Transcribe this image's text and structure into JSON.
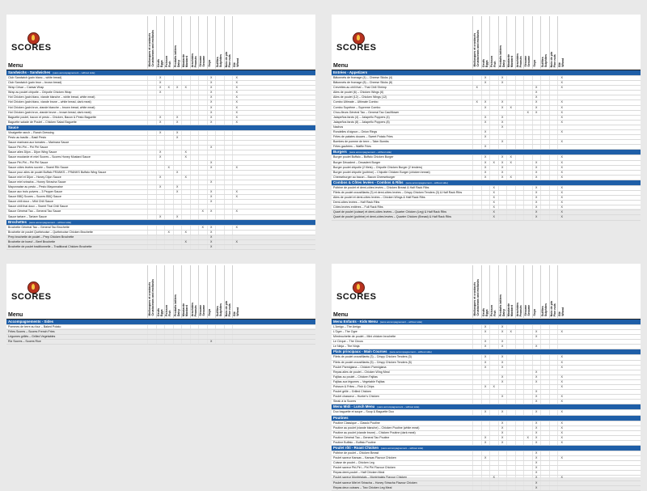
{
  "logo_text": "SCORES",
  "menu_label": "Menu",
  "columns": [
    "Mollusques et crustacés\nCrustaceans and mollusks",
    "Oeufs\nEggs",
    "Poisson\nFish",
    "Produits laitiers\nDairy",
    "Moutarde\nMustard",
    "Arachides\nPeanuts",
    "Sésame\nSesame",
    "Soya",
    "Sulfites\nSulphites",
    "Noix de pin\nPine nuts",
    "Blé\nWheat"
  ],
  "panels": [
    {
      "sections": [
        {
          "title": "Sandwichs - Sandwiches",
          "note": "(sans accompagnement – without side)",
          "rows": [
            {
              "name": "Club Sandwich (pain blanc – white bread)",
              "marks": [
                2,
                8,
                11
              ]
            },
            {
              "name": "Club Sandwich (pain brun – brown bread)",
              "marks": [
                2,
                8,
                11
              ]
            },
            {
              "name": "Wrap César – Caesar Wrap",
              "marks": [
                2,
                3,
                4,
                5,
                8,
                11
              ]
            },
            {
              "name": "Wrap au poulet chipotle – Chipotle Chicken Wrap",
              "marks": [
                2,
                8,
                11
              ]
            },
            {
              "name": "Hot Chicken (pain blanc, viande blanche – white bread, white meat)",
              "marks": [
                8,
                11
              ]
            },
            {
              "name": "Hot Chicken (pain blanc, viande brune – white bread, dark meat)",
              "marks": [
                8,
                11
              ]
            },
            {
              "name": "Hot Chicken (pain brun, viande blanche – brown bread, white meat)",
              "marks": [
                8,
                11
              ]
            },
            {
              "name": "Hot Chicken (pain brun, viande brune – brown bread, dark meat)",
              "marks": [
                8,
                11
              ]
            },
            {
              "name": "Baguette poulet, bacon et pesto – Chicken, Bacon & Pesto Baguette",
              "marks": [
                2,
                4,
                8,
                11
              ]
            },
            {
              "name": "Baguette salade de Poulet – Chicken Salad Baguette",
              "marks": [
                2,
                4,
                8,
                11
              ]
            }
          ]
        },
        {
          "title": "Sauce",
          "note": "",
          "rows": [
            {
              "name": "Vinaigrette ranch – Ranch Dressing",
              "marks": [
                2,
                4
              ]
            },
            {
              "name": "Pesto au basilic – Basil Pesto",
              "marks": [
                4
              ]
            },
            {
              "name": "Sauce marinara aux tomates – Marinara Sauce",
              "marks": []
            },
            {
              "name": "Sauce Piri-Piri – Piri Piri Sauce",
              "marks": [
                8
              ]
            },
            {
              "name": "Sauce ailes Dijon – Dijon Wing Sauce",
              "marks": [
                2,
                5
              ]
            },
            {
              "name": "Sauce moutarde et miel Scores – Scores Honey Mustard Sauce",
              "marks": [
                2,
                5
              ]
            },
            {
              "name": "Sauce Piri-Piri – Piri Piri Sauce",
              "marks": [
                8
              ]
            },
            {
              "name": "Sauce côtes levées sucrée – Sweet Rib Sauce",
              "marks": [
                3,
                8,
                11
              ]
            },
            {
              "name": "Sauce pour ailes de poulet Buffalo FRANKS – FRANKS Buffalo Wing Sauce",
              "marks": [
                4
              ]
            },
            {
              "name": "Sauce miel et Dijon – Honey Dijon Sauce",
              "marks": [
                2,
                5
              ]
            },
            {
              "name": "Sauce miel sriracha – Honey Sriracha Sauce",
              "marks": [
                8
              ]
            },
            {
              "name": "Mayonnaise au pesto – Pesto Mayonnaise",
              "marks": [
                2,
                4
              ]
            },
            {
              "name": "Sauce aux trois poivres – 3 Pepper Sauce",
              "marks": [
                4,
                8,
                11
              ]
            },
            {
              "name": "Sauce BBQ Scores – Scores BBQ Sauce",
              "marks": [
                8,
                11
              ]
            },
            {
              "name": "Sauce chili doux – Mild Chili Sauce",
              "marks": [
                8
              ]
            },
            {
              "name": "Sauce chili thai doux – Sweet Thai Chili Sauce",
              "marks": []
            },
            {
              "name": "Sauce Général Tao – General Tao Sauce",
              "marks": [
                7,
                8,
                11
              ]
            },
            {
              "name": "Sauce tartare – Tartare Sauce",
              "marks": [
                2,
                4
              ]
            }
          ]
        },
        {
          "title": "Brochettes",
          "note": "(sans accompagnement – without side)",
          "rows": [
            {
              "name": "Brochette Général Tao – General Tao Brochette",
              "marks": [
                7,
                8,
                11
              ]
            },
            {
              "name": "Brochette de poulet Québécoise – Québécoise Chicken Brochette",
              "marks": [
                3,
                5,
                8
              ]
            },
            {
              "name": "Prep brochette de poulet – Prep Chicken Brochette",
              "marks": [
                8
              ]
            },
            {
              "name": "Brochette de boeuf – Beef Brochette",
              "marks": [
                5,
                8,
                11
              ]
            },
            {
              "name": "Brochette de poulet traditionnelle – Traditional Chicken Brochette",
              "marks": [
                8
              ]
            }
          ]
        }
      ]
    },
    {
      "sections": [
        {
          "title": "Entrées - Appetizers",
          "note": "",
          "rows": [
            {
              "name": "Bâtonnets de fromage (4) – Cheese Sticks (4)",
              "marks": [
                2,
                4,
                11
              ]
            },
            {
              "name": "Bâtonnets de fromage (8) – Cheese Sticks (8)",
              "marks": [
                2,
                4,
                11
              ]
            },
            {
              "name": "Crevettes au chili thaï – Thai Chili Shrimp",
              "marks": [
                1,
                8,
                11
              ]
            },
            {
              "name": "Ailes de poulet (6) – Chicken Wings (6)",
              "marks": [
                8
              ]
            },
            {
              "name": "Ailes de poulet (12) – Chicken Wings (12)",
              "marks": [
                8
              ]
            },
            {
              "name": "Combo Ultimate – Ultimate Combo",
              "marks": [
                1,
                2,
                4,
                8,
                11
              ]
            },
            {
              "name": "Combo Suprême – Supreme Combo",
              "marks": [
                2,
                4,
                5,
                8,
                11
              ]
            },
            {
              "name": "Chou-fleurs Général Tao – General Tao Cauliflower",
              "marks": [
                7,
                8,
                11
              ]
            },
            {
              "name": "Jalapeños farcis (4) – Jalapeño Poppers (4)",
              "marks": [
                2,
                4,
                11
              ]
            },
            {
              "name": "Jalapeños farcis (8) – Jalapeño Poppers (8)",
              "marks": [
                2,
                4,
                11
              ]
            },
            {
              "name": "Nachos",
              "marks": [
                4
              ]
            },
            {
              "name": "Rondelles d'oignon – Onion Rings",
              "marks": [
                2,
                11
              ]
            },
            {
              "name": "Frites de patates douces – Sweet Potato Fries",
              "marks": [
                2
              ]
            },
            {
              "name": "Bombes de pomme de terre – Tater Bombs",
              "marks": [
                4,
                11
              ]
            },
            {
              "name": "Frites gaufrées – Waffle Fries",
              "marks": [
                2
              ]
            }
          ]
        },
        {
          "title": "Burgers",
          "note": "(sans accompagnement – without side)",
          "rows": [
            {
              "name": "Burger poulet Buffalo – Buffalo Chicken Burger",
              "marks": [
                2,
                4,
                5,
                11
              ]
            },
            {
              "name": "Burger Décadent – Decadent Burger",
              "marks": [
                2,
                3,
                4,
                5,
                8,
                11
              ]
            },
            {
              "name": "Burger poulet chipotle (2 filets) – Chipotle Chicken Burger (2 tenders)",
              "marks": [
                2,
                4,
                8,
                11
              ]
            },
            {
              "name": "Burger poulet chipotle (poitrine) – Chipotle Chicken Burger (chicken breast)",
              "marks": [
                2,
                4,
                8,
                11
              ]
            },
            {
              "name": "Cheeseburger au bacon – Bacon Cheeseburger",
              "marks": [
                2,
                4,
                5,
                8,
                11
              ]
            }
          ]
        },
        {
          "title": "Combos & Côtes levées - Combos & Ribs",
          "note": "(sans accompagnement – without side)",
          "rows": [
            {
              "name": "Poitrine de poulet et demi-côtes levées – Chicken Breast & Half Rack Ribs",
              "marks": [
                3,
                8,
                11
              ]
            },
            {
              "name": "Filets de poulet croustillants (3) et demi-côtes levées – Crispy Chicken Tenders (3) & Half Rack Ribs",
              "marks": [
                3,
                8,
                11
              ]
            },
            {
              "name": "Ailes de poulet et demi-côtes levées – Chicken Wings & Half Rack Ribs",
              "marks": [
                3,
                8,
                11
              ]
            },
            {
              "name": "Demi-côtes levées – Half Rack Ribs",
              "marks": [
                3,
                8,
                11
              ]
            },
            {
              "name": "Côtes levées entières – Full Rack Ribs",
              "marks": [
                3,
                8,
                11
              ]
            },
            {
              "name": "Quart de poulet (cuisse) et demi-côtes levées – Quarter Chicken (Leg) & Half Rack Ribs",
              "marks": [
                3,
                8,
                11
              ]
            },
            {
              "name": "Quart de poulet (poitrine) et demi-côtes levées – Quarter Chicken (Breast) & Half Rack Ribs",
              "marks": [
                3,
                8,
                11
              ]
            }
          ]
        }
      ]
    },
    {
      "sections": [
        {
          "title": "Accompagnements - Sides",
          "note": "",
          "rows": [
            {
              "name": "Pommes de terre au four – Baked Potato",
              "marks": []
            },
            {
              "name": "Frites Scores – Scores French Fries",
              "marks": []
            },
            {
              "name": "Légumes grillés – Grilled Vegetables",
              "marks": []
            },
            {
              "name": "Riz Scores – Scores Rice",
              "marks": [
                8
              ]
            }
          ]
        }
      ]
    },
    {
      "sections": [
        {
          "title": "Menu Enfants - Kids Menu",
          "note": "(sans accompagnement – without side)",
          "rows": [
            {
              "name": "L'Amigo – The Amigo",
              "marks": [
                2,
                4
              ]
            },
            {
              "name": "L'Ogre – The Ogre",
              "marks": [
                2,
                4,
                5,
                8,
                11
              ]
            },
            {
              "name": "Mimbrochette de poulet – Mini chicken brochette",
              "marks": [
                8
              ]
            },
            {
              "name": "Le Cirque – The Circus",
              "marks": [
                2,
                4
              ]
            },
            {
              "name": "Le Ninja – The Ninja",
              "marks": [
                2,
                4,
                8
              ]
            }
          ]
        },
        {
          "title": "Plats principaux - Main Courses",
          "note": "(sans accompagnement – without side)",
          "rows": [
            {
              "name": "Filets de poulet croustillants (3) – Crispy Chicken Tenders (3)",
              "marks": [
                2,
                4,
                11
              ]
            },
            {
              "name": "Filets de poulet croustillants (5) – Crispy Chicken Tenders (5)",
              "marks": [
                2,
                4,
                11
              ]
            },
            {
              "name": "Poulet Parmigiana – Chicken Parmigiana",
              "marks": [
                2,
                4,
                11
              ]
            },
            {
              "name": "Repas ailes de poulet – Chicken Wing Meal",
              "marks": [
                8
              ]
            },
            {
              "name": "Fajitas au poulet – Chicken Fajitas",
              "marks": [
                4,
                8,
                11
              ]
            },
            {
              "name": "Fajitas aux légumes – Vegetable Fajitas",
              "marks": [
                4,
                8,
                11
              ]
            },
            {
              "name": "Poisson & Frites – Fish & Chips",
              "marks": [
                2,
                3,
                11
              ]
            },
            {
              "name": "Poulet grillé – Grilled Chicken",
              "marks": [
                8
              ]
            },
            {
              "name": "Poulet chasseur – Hunter's Chicken",
              "marks": [
                4,
                8,
                11
              ]
            },
            {
              "name": "Steak à la Scores",
              "marks": [
                8,
                11
              ]
            }
          ]
        },
        {
          "title": "Menu Midi - Lunch Menu",
          "note": "(sans accompagnement – without side)",
          "rows": [
            {
              "name": "Duo baguette et soupe – Soup & Baguette Duo",
              "marks": [
                2,
                4,
                8,
                11
              ]
            }
          ]
        },
        {
          "title": "Poutines",
          "note": "",
          "rows": [
            {
              "name": "Poutine Classique – Classic Poutine",
              "marks": [
                4,
                8,
                11
              ]
            },
            {
              "name": "Poutine au poulet (viande blanche) – Chicken Poutine (white meat)",
              "marks": [
                4,
                8,
                11
              ]
            },
            {
              "name": "Poutine au poulet (viande brune) – Chicken Poutine (dark meat)",
              "marks": [
                4,
                8,
                11
              ]
            },
            {
              "name": "Poutine Général Tao – General Tao Poutine",
              "marks": [
                2,
                4,
                7,
                8,
                11
              ]
            },
            {
              "name": "Poutine Buffalo – Buffalo Poutine",
              "marks": [
                2,
                4,
                8,
                11
              ]
            }
          ]
        },
        {
          "title": "Poulet rôti - Roast Chicken",
          "note": "(sans accompagnement – without side)",
          "rows": [
            {
              "name": "Poitrine de poulet – Chicken Breast",
              "marks": [
                8
              ]
            },
            {
              "name": "Poulet saveur Kansas – Kansas Flavour Chicken",
              "marks": [
                2,
                8,
                11
              ]
            },
            {
              "name": "Cuisse de poulet – Chicken Leg",
              "marks": [
                8
              ]
            },
            {
              "name": "Poulet saveur Piri-Piri – Piri Piri Flavour Chicken",
              "marks": [
                8
              ]
            },
            {
              "name": "Repas demi-poulet – Half Chicken Meal",
              "marks": [
                8
              ]
            },
            {
              "name": "Poulet saveur Montréalais – Montréalais Flavour Chicken",
              "marks": [
                3,
                8,
                11
              ]
            },
            {
              "name": "Poulet saveur Miel et Sriracha – Honey Sriracha Flavour Chicken",
              "marks": [
                8
              ]
            },
            {
              "name": "Repas deux cuisses – Two Chicken Leg Meal",
              "marks": [
                8
              ]
            }
          ]
        }
      ]
    }
  ]
}
